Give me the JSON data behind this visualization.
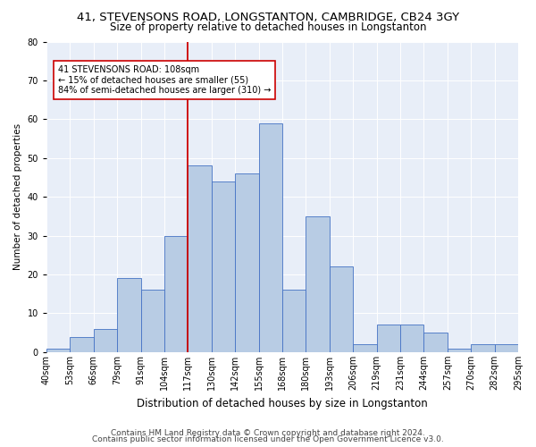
{
  "title1": "41, STEVENSONS ROAD, LONGSTANTON, CAMBRIDGE, CB24 3GY",
  "title2": "Size of property relative to detached houses in Longstanton",
  "xlabel": "Distribution of detached houses by size in Longstanton",
  "ylabel": "Number of detached properties",
  "bar_labels": [
    "40sqm",
    "53sqm",
    "66sqm",
    "79sqm",
    "91sqm",
    "104sqm",
    "117sqm",
    "130sqm",
    "142sqm",
    "155sqm",
    "168sqm",
    "180sqm",
    "193sqm",
    "206sqm",
    "219sqm",
    "231sqm",
    "244sqm",
    "257sqm",
    "270sqm",
    "282sqm",
    "295sqm"
  ],
  "bar_values": [
    1,
    4,
    6,
    19,
    16,
    30,
    48,
    44,
    46,
    59,
    16,
    35,
    22,
    2,
    7,
    7,
    5,
    1,
    2,
    2
  ],
  "bar_color": "#b8cce4",
  "bar_edge_color": "#4472c4",
  "vline_index": 6,
  "vline_color": "#cc0000",
  "annotation_text": "41 STEVENSONS ROAD: 108sqm\n← 15% of detached houses are smaller (55)\n84% of semi-detached houses are larger (310) →",
  "annotation_box_color": "#ffffff",
  "annotation_box_edge": "#cc0000",
  "ylim": [
    0,
    80
  ],
  "yticks": [
    0,
    10,
    20,
    30,
    40,
    50,
    60,
    70,
    80
  ],
  "background_color": "#e8eef8",
  "footer1": "Contains HM Land Registry data © Crown copyright and database right 2024.",
  "footer2": "Contains public sector information licensed under the Open Government Licence v3.0.",
  "title1_fontsize": 9.5,
  "title2_fontsize": 8.5,
  "xlabel_fontsize": 8.5,
  "ylabel_fontsize": 7.5,
  "tick_fontsize": 7,
  "annot_fontsize": 7,
  "footer_fontsize": 6.5
}
